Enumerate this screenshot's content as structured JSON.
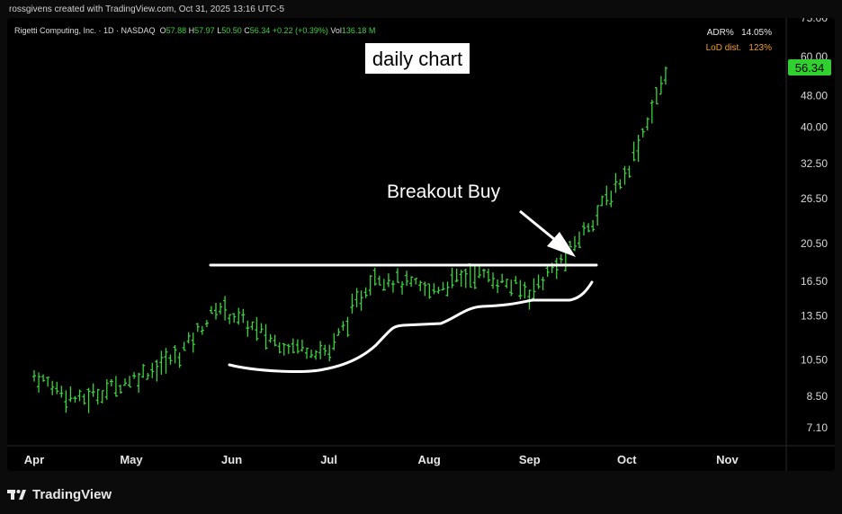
{
  "header": {
    "attribution": "rossgivens created with TradingView.com, Oct 31, 2025 13:16 UTC-5"
  },
  "legend": {
    "symbol": "Rigetti Computing, Inc. · 1D · NASDAQ",
    "open_label": "O",
    "open": "57.88",
    "high_label": "H",
    "high": "57.97",
    "low_label": "L",
    "low": "50.50",
    "close_label": "C",
    "close": "56.34",
    "change": "+0.22 (+0.39%)",
    "vol_label": "Vol",
    "vol": "136.18 M"
  },
  "indicators": {
    "adr_label": "ADR%",
    "adr_value": "14.05%",
    "lod_label": "LoD dist.",
    "lod_value": "123%"
  },
  "price_badge": "56.34",
  "annotations": {
    "title_box": "daily chart",
    "breakout": "Breakout Buy"
  },
  "footer": {
    "brand": "TradingView"
  },
  "colors": {
    "up": "#3bd23b",
    "badge": "#2fd02f",
    "background": "#000000",
    "annotation": "#ffffff"
  },
  "chart_data": {
    "type": "bar",
    "series_kind": "ohlc",
    "scale": "log",
    "y_ticks": [
      75.0,
      60.0,
      48.0,
      40.0,
      32.5,
      26.5,
      20.5,
      16.5,
      13.5,
      10.5,
      8.5,
      7.1
    ],
    "y_tick_labels": [
      "75.00",
      "60.00",
      "48.00",
      "40.00",
      "32.50",
      "26.50",
      "20.50",
      "16.50",
      "13.50",
      "10.50",
      "8.50",
      "7.10"
    ],
    "x_tick_labels": [
      "Apr",
      "May",
      "Jun",
      "Jul",
      "Aug",
      "Sep",
      "Oct",
      "Nov"
    ],
    "grid": false,
    "resistance_level": 18.3,
    "monthly_closes_approx": [
      {
        "date": "2025-04-01",
        "close": 9.6
      },
      {
        "date": "2025-04-15",
        "close": 8.3
      },
      {
        "date": "2025-05-01",
        "close": 9.4
      },
      {
        "date": "2025-05-15",
        "close": 10.7
      },
      {
        "date": "2025-05-28",
        "close": 14.3
      },
      {
        "date": "2025-06-15",
        "close": 11.6
      },
      {
        "date": "2025-07-01",
        "close": 11.0
      },
      {
        "date": "2025-07-15",
        "close": 17.2
      },
      {
        "date": "2025-08-01",
        "close": 15.6
      },
      {
        "date": "2025-08-15",
        "close": 17.4
      },
      {
        "date": "2025-09-01",
        "close": 15.5
      },
      {
        "date": "2025-09-12",
        "close": 19.0
      },
      {
        "date": "2025-10-01",
        "close": 31.0
      },
      {
        "date": "2025-10-14",
        "close": 56.34
      }
    ]
  }
}
